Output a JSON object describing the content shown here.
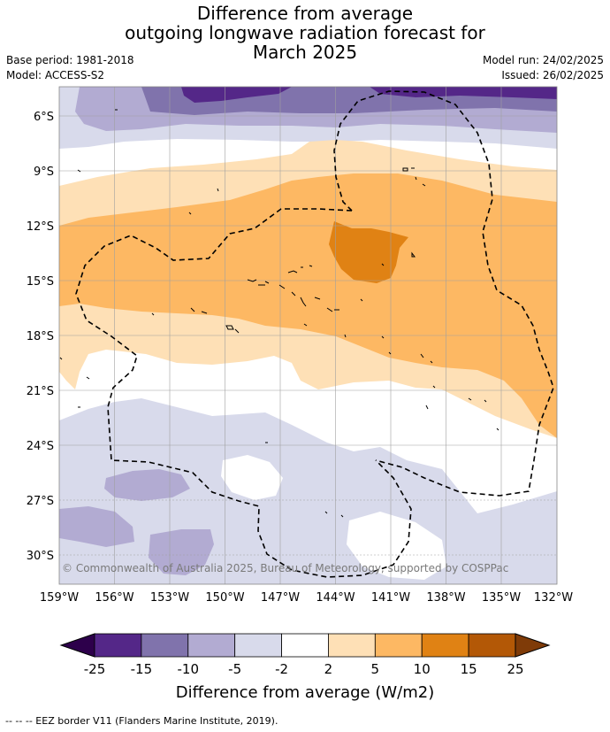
{
  "title": {
    "line1": "Difference from average",
    "line2": "outgoing longwave radiation forecast for",
    "line3": "March 2025"
  },
  "meta": {
    "base_period": "Base period: 1981-2018",
    "model": "Model: ACCESS-S2",
    "model_run": "Model run: 24/02/2025",
    "issued": "Issued: 26/02/2025"
  },
  "map": {
    "copyright": "© Commonwealth of Australia 2025, Bureau of Meteorology, supported by COSPPac",
    "lat_labels": [
      "6°S",
      "9°S",
      "12°S",
      "15°S",
      "18°S",
      "21°S",
      "24°S",
      "27°S",
      "30°S"
    ],
    "lon_labels": [
      "159°W",
      "156°W",
      "153°W",
      "150°W",
      "147°W",
      "144°W",
      "141°W",
      "138°W",
      "135°W",
      "132°W"
    ]
  },
  "colorbar": {
    "title": "Difference from average (W/m2)",
    "labels": [
      "-25",
      "-15",
      "-10",
      "-5",
      "-2",
      "2",
      "5",
      "10",
      "15",
      "25"
    ],
    "colors": {
      "under": "#2d004b",
      "bins": [
        "#542788",
        "#8073ac",
        "#b2abd2",
        "#d8daeb",
        "#ffffff",
        "#fee0b6",
        "#fdb863",
        "#e08214",
        "#b35806"
      ],
      "over": "#7f3b08"
    }
  },
  "footnote": "--  --  -- EEZ border V11 (Flanders Marine Institute, 2019)."
}
